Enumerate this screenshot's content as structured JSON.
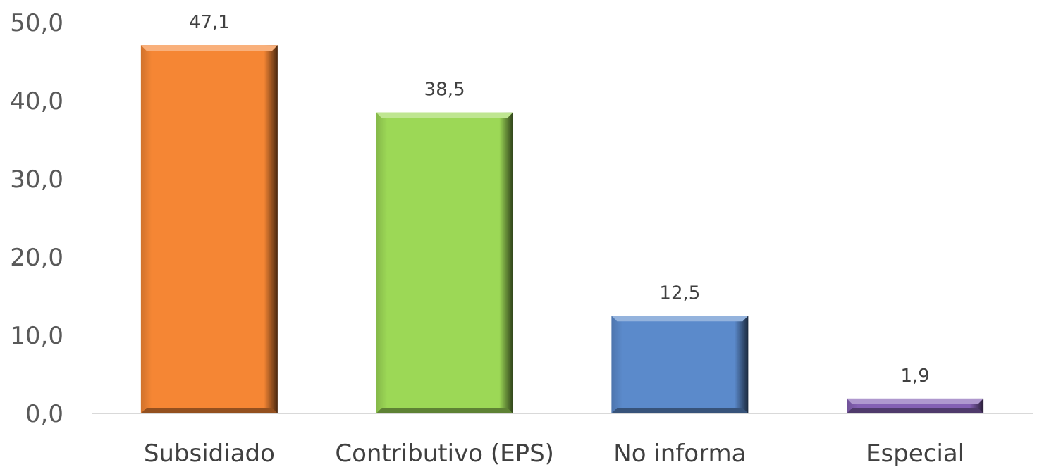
{
  "chart_data": {
    "type": "bar",
    "categories": [
      "Subsidiado",
      "Contributivo (EPS)",
      "No informa",
      "Especial"
    ],
    "values": [
      47.1,
      38.5,
      12.5,
      1.9
    ],
    "value_labels": [
      "47,1",
      "38,5",
      "12,5",
      "1,9"
    ],
    "colors": [
      "#F58634",
      "#9CD856",
      "#5B8ACB",
      "#8460B3"
    ],
    "ylim": [
      0,
      50
    ],
    "yticks": [
      0,
      10,
      20,
      30,
      40,
      50
    ],
    "ytick_labels": [
      "0,0",
      "10,0",
      "20,0",
      "30,0",
      "40,0",
      "50,0"
    ],
    "title": "",
    "xlabel": "",
    "ylabel": "",
    "grid": false,
    "legend": "none"
  }
}
